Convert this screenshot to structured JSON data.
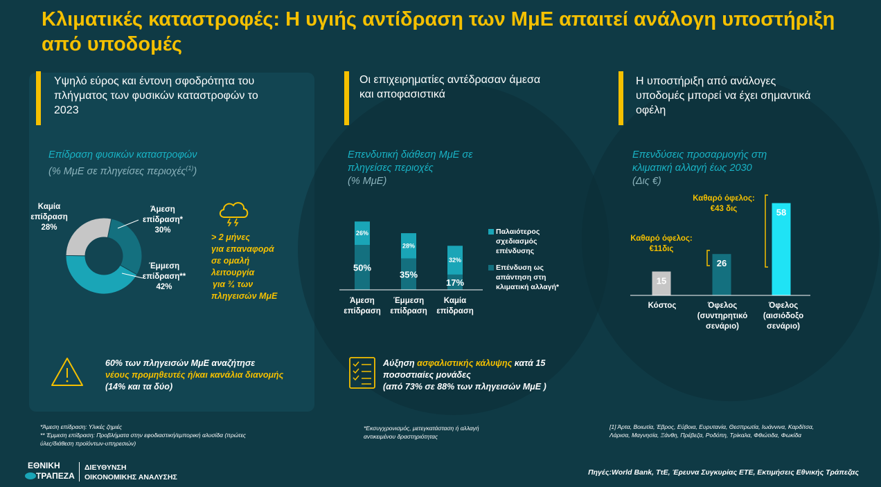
{
  "title": "Κλιματικές καταστροφές: Η υγιής αντίδραση των ΜμΕ απαιτεί ανάλογη υποστήριξη από υποδομές",
  "sections": [
    {
      "header": "Υψηλό εύρος και έντονη σφοδρότητα του πλήγματος των φυσικών καταστροφών το 2023"
    },
    {
      "header": "Οι επιχειρηματίες αντέδρασαν άμεσα και αποφασιστικά"
    },
    {
      "header": "Η υποστήριξη από ανάλογες υποδομές μπορεί να έχει σημαντικά οφέλη"
    }
  ],
  "colors": {
    "accent": "#f5c000",
    "teal_dark": "#14707f",
    "teal_mid": "#1aa5b7",
    "cyan_bright": "#1fe3f5",
    "grey": "#c6c6c6",
    "title_teal": "#19b3c5"
  },
  "chart_data": [
    {
      "type": "pie",
      "title": "Επίδραση φυσικών καταστροφών",
      "subtitle": "(% ΜμΕ σε πληγείσες περιοχές",
      "subtitle_sup": "(1)",
      "subtitle_end": ")",
      "slices": [
        {
          "label_l1": "Άμεση",
          "label_l2": "επίδραση*",
          "value": 30,
          "value_text": "30%",
          "color": "#14707f"
        },
        {
          "label_l1": "Έμμεση",
          "label_l2": "επίδραση**",
          "value": 42,
          "value_text": "42%",
          "color": "#1aa5b7"
        },
        {
          "label_l1": "Καμία",
          "label_l2": "επίδραση",
          "value": 28,
          "value_text": "28%",
          "color": "#c6c6c6"
        }
      ]
    },
    {
      "type": "bar",
      "stacked": true,
      "title_l1": "Επενδυτική διάθεση ΜμΕ σε",
      "title_l2": "πληγείσες περιοχές",
      "subtitle": "(% ΜμΕ)",
      "categories": [
        {
          "l1": "Άμεση",
          "l2": "επίδραση"
        },
        {
          "l1": "Έμμεση",
          "l2": "επίδραση"
        },
        {
          "l1": "Καμία",
          "l2": "επίδραση"
        }
      ],
      "series": [
        {
          "name_lines": [
            "Επένδυση ως",
            "απάντηση στη",
            "κλιματική αλλαγή*"
          ],
          "values": [
            50,
            35,
            17
          ],
          "labels": [
            "50%",
            "35%",
            "17%"
          ],
          "color": "#14707f"
        },
        {
          "name_lines": [
            "Παλαιότερος",
            "σχεδιασμός",
            "επένδυσης"
          ],
          "values": [
            26,
            28,
            32
          ],
          "labels": [
            "26%",
            "28%",
            "32%"
          ],
          "color": "#1aa5b7"
        }
      ]
    },
    {
      "type": "bar",
      "title_l1": "Επενδύσεις προσαρμογής στη",
      "title_l2": "κλιματική αλλαγή έως 2030",
      "subtitle": "(Δις €)",
      "categories": [
        {
          "l1": "Κόστος",
          "l2": "",
          "l3": ""
        },
        {
          "l1": "Όφελος",
          "l2": "(συντηρητικό",
          "l3": "σενάριο)"
        },
        {
          "l1": "Όφελος",
          "l2": "(αισιόδοξο",
          "l3": "σενάριο)"
        }
      ],
      "values": [
        15,
        26,
        58
      ],
      "value_labels": [
        "15",
        "26",
        "58"
      ],
      "colors": [
        "#c6c6c6",
        "#14707f",
        "#1fe3f5"
      ],
      "annotations": [
        {
          "l1": "Καθαρό όφελος:",
          "l2": "€11δις"
        },
        {
          "l1": "Καθαρό όφελος:",
          "l2": "€43 δις"
        }
      ]
    }
  ],
  "weather_note": {
    "l1": "> 2 μήνες",
    "l2": "για επαναφορά",
    "l3": "σε ομαλή",
    "l4": "λειτουργία",
    "l5": "για ¾ των",
    "l6": "πληγεισών ΜμΕ"
  },
  "notes": {
    "suppliers": {
      "pre": "60% των πληγεισών ΜμΕ αναζήτησε",
      "highlight": "νέους προμηθευτές ή/και κανάλια διανομής",
      "post": "(14% και τα δύο)"
    },
    "insurance": {
      "pre": "Αύξηση",
      "highlight": "ασφαλιστικής κάλυψης",
      "post1": "κατά 15",
      "post2": "ποσοστιαίες μονάδες",
      "post3": "(από 73% σε 88% των πληγεισών ΜμΕ )"
    }
  },
  "footnotes": {
    "f1": "*Άμεση επίδραση: Υλικές ζημιές",
    "f2a": "** Έμμεση επίδραση: Προβλήματα στην εφοδιαστική/εμπορική αλυσίδα (πρώτες",
    "f2b": "ύλες/διάθεση προϊόντων-υπηρεσιών)",
    "f3a": "*Εκσυγχρονισμός, μετεγκατάσταση ή αλλαγή",
    "f3b": "αντικειμένου δραστηριότητας",
    "f4a": "[1] Άρτα, Βοιωτία, Έβρος, Εύβοια, Ευρυτανία, Θεσπρωτία, Ιωάννινα, Καρδίτσα,",
    "f4b": "Λάρισα, Μαγνησία, Ξάνθη, Πρέβεζα, Ροδόπη, Τρίκαλα, Φθιώτιδα, Φωκίδα"
  },
  "footer": {
    "logo_l1": "ΕΘΝΙΚΗ",
    "logo_l2": "ΤΡΑΠΕΖΑ",
    "dept_l1": "ΔΙΕΥΘΥΝΣΗ",
    "dept_l2": "ΟΙΚΟΝΟΜΙΚΗΣ ΑΝΑΛΥΣΗΣ",
    "sources": "Πηγές:World Bank, ΤτΕ, Έρευνα Συγκυρίας ΕΤΕ, Εκτιμήσεις Εθνικής Τράπεζας"
  },
  "icons": {
    "weather": "storm-cloud-icon",
    "warning": "warning-triangle-icon",
    "checklist": "checklist-icon"
  }
}
